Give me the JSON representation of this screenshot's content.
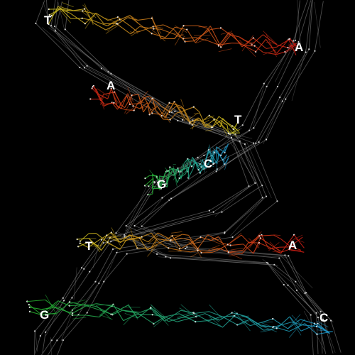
{
  "background_color": "#000000",
  "backbone_color": "#8a8a8a",
  "node_color": "#dddddd",
  "base_colors": {
    "T": "#c8c01e",
    "A": "#d21e14",
    "C": "#1e96c8",
    "G": "#28b428"
  },
  "base_pairs": [
    {
      "left": "T",
      "right": "A"
    },
    {
      "left": "A",
      "right": "T"
    },
    {
      "left": "G",
      "right": "C"
    },
    {
      "left": "T",
      "right": "A"
    },
    {
      "left": "G",
      "right": "C"
    }
  ]
}
